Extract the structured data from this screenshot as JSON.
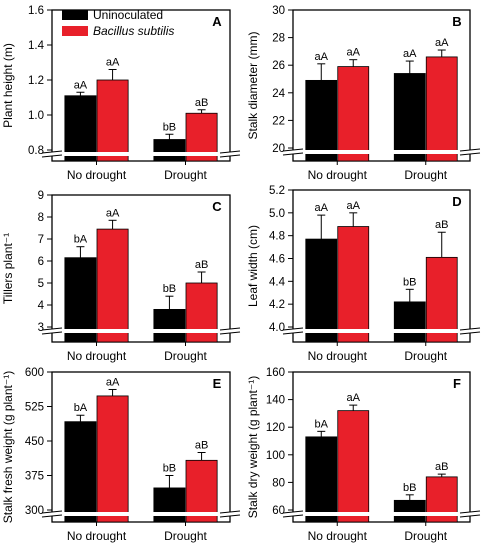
{
  "legend": [
    {
      "label": "Uninoculated",
      "color": "#000000"
    },
    {
      "label": "Bacillus subtilis",
      "color": "#e8202a",
      "italic": true
    }
  ],
  "chart_data": [
    {
      "type": "bar",
      "panel": "A",
      "ylabel": "Plant height (m)",
      "categories": [
        "No drought",
        "Drought"
      ],
      "ylim": [
        0.8,
        1.6
      ],
      "broken_axis": true,
      "yticks": [
        "0.8",
        "1.0",
        "1.2",
        "1.4",
        "1.6"
      ],
      "ytick_values": [
        0.8,
        1.0,
        1.2,
        1.4,
        1.6
      ],
      "series": [
        {
          "name": "Uninoculated",
          "values": [
            1.11,
            0.86
          ],
          "errors": [
            0.02,
            0.03
          ],
          "letters": [
            "aA",
            "bB"
          ]
        },
        {
          "name": "Bacillus subtilis",
          "values": [
            1.2,
            1.01
          ],
          "errors": [
            0.06,
            0.02
          ],
          "letters": [
            "aA",
            "aB"
          ]
        }
      ]
    },
    {
      "type": "bar",
      "panel": "B",
      "ylabel": "Stalk diameter (mm)",
      "categories": [
        "No drought",
        "Drought"
      ],
      "ylim": [
        20,
        30
      ],
      "broken_axis": true,
      "yticks": [
        "20",
        "22",
        "24",
        "26",
        "28",
        "30"
      ],
      "ytick_values": [
        20,
        22,
        24,
        26,
        28,
        30
      ],
      "series": [
        {
          "name": "Uninoculated",
          "values": [
            24.9,
            25.4
          ],
          "errors": [
            1.2,
            0.9
          ],
          "letters": [
            "aA",
            "aA"
          ]
        },
        {
          "name": "Bacillus subtilis",
          "values": [
            25.9,
            26.6
          ],
          "errors": [
            0.5,
            0.5
          ],
          "letters": [
            "aA",
            "aA"
          ]
        }
      ]
    },
    {
      "type": "bar",
      "panel": "C",
      "ylabel": "Tillers plant⁻¹",
      "categories": [
        "No drought",
        "Drought"
      ],
      "ylim": [
        3,
        9
      ],
      "broken_axis": true,
      "yticks": [
        "3",
        "4",
        "5",
        "6",
        "7",
        "8",
        "9"
      ],
      "ytick_values": [
        3,
        4,
        5,
        6,
        7,
        8,
        9
      ],
      "series": [
        {
          "name": "Uninoculated",
          "values": [
            6.15,
            3.8
          ],
          "errors": [
            0.5,
            0.6
          ],
          "letters": [
            "bA",
            "bB"
          ]
        },
        {
          "name": "Bacillus subtilis",
          "values": [
            7.45,
            5.0
          ],
          "errors": [
            0.4,
            0.5
          ],
          "letters": [
            "aA",
            "aB"
          ]
        }
      ]
    },
    {
      "type": "bar",
      "panel": "D",
      "ylabel": "Leaf width (cm)",
      "categories": [
        "No drought",
        "Drought"
      ],
      "ylim": [
        4.0,
        5.2
      ],
      "broken_axis": true,
      "yticks": [
        "4.0",
        "4.2",
        "4.4",
        "4.6",
        "4.8",
        "5.0",
        "5.2"
      ],
      "ytick_values": [
        4.0,
        4.2,
        4.4,
        4.6,
        4.8,
        5.0,
        5.2
      ],
      "series": [
        {
          "name": "Uninoculated",
          "values": [
            4.77,
            4.22
          ],
          "errors": [
            0.21,
            0.11
          ],
          "letters": [
            "aA",
            "bB"
          ]
        },
        {
          "name": "Bacillus subtilis",
          "values": [
            4.88,
            4.61
          ],
          "errors": [
            0.12,
            0.22
          ],
          "letters": [
            "aA",
            "aB"
          ]
        }
      ]
    },
    {
      "type": "bar",
      "panel": "E",
      "ylabel": "Stalk fresh weight (g plant⁻¹)",
      "categories": [
        "No drought",
        "Drought"
      ],
      "ylim": [
        300,
        600
      ],
      "broken_axis": true,
      "yticks": [
        "300",
        "375",
        "450",
        "525",
        "600"
      ],
      "ytick_values": [
        300,
        375,
        450,
        525,
        600
      ],
      "series": [
        {
          "name": "Uninoculated",
          "values": [
            492,
            348
          ],
          "errors": [
            14,
            27
          ],
          "letters": [
            "bA",
            "bB"
          ]
        },
        {
          "name": "Bacillus subtilis",
          "values": [
            548,
            408
          ],
          "errors": [
            14,
            17
          ],
          "letters": [
            "aA",
            "aB"
          ]
        }
      ]
    },
    {
      "type": "bar",
      "panel": "F",
      "ylabel": "Stalk dry weight (g plant⁻¹)",
      "categories": [
        "No drought",
        "Drought"
      ],
      "ylim": [
        60,
        160
      ],
      "broken_axis": true,
      "yticks": [
        "60",
        "80",
        "100",
        "120",
        "140",
        "160"
      ],
      "ytick_values": [
        60,
        80,
        100,
        120,
        140,
        160
      ],
      "series": [
        {
          "name": "Uninoculated",
          "values": [
            113,
            67
          ],
          "errors": [
            4,
            4
          ],
          "letters": [
            "bA",
            "bB"
          ]
        },
        {
          "name": "Bacillus subtilis",
          "values": [
            132,
            84
          ],
          "errors": [
            4,
            2
          ],
          "letters": [
            "aA",
            "aB"
          ]
        }
      ]
    }
  ]
}
